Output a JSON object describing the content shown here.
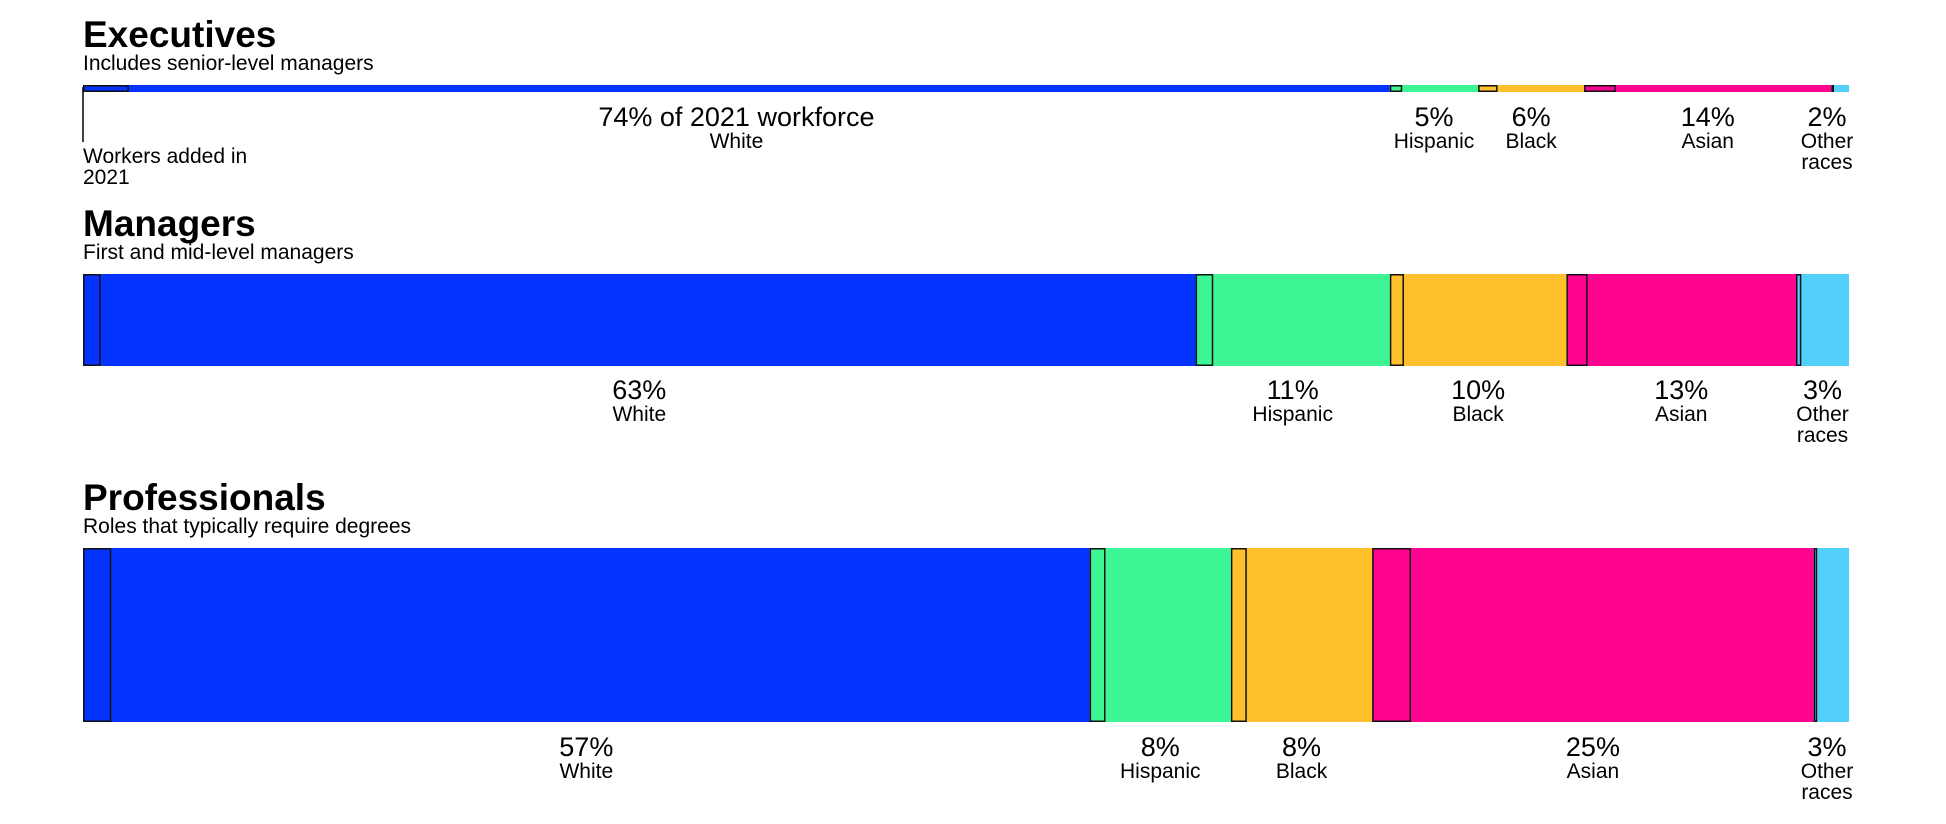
{
  "chart_data": {
    "type": "bar",
    "orientation": "horizontal",
    "stacked": true,
    "unit": "% of 2021 workforce",
    "colors": {
      "White": "#0433ff",
      "Hispanic": "#3cf595",
      "Black": "#ffc12b",
      "Asian": "#ff0391",
      "Other races": "#52d0fa"
    },
    "panels": [
      {
        "title": "Executives",
        "subtitle": "Includes senior-level managers",
        "segments": [
          {
            "group": "White",
            "value": 74,
            "added": 2.6,
            "pct_label": "74% of 2021 workforce",
            "label": "White"
          },
          {
            "group": "Hispanic",
            "value": 5,
            "added": 0.7,
            "pct_label": "5%",
            "label": "Hispanic"
          },
          {
            "group": "Black",
            "value": 6,
            "added": 1.1,
            "pct_label": "6%",
            "label": "Black"
          },
          {
            "group": "Asian",
            "value": 14,
            "added": 1.8,
            "pct_label": "14%",
            "label": "Asian"
          },
          {
            "group": "Other races",
            "value": 2,
            "added": 0.15,
            "pct_label": "2%",
            "label": "Other races"
          }
        ]
      },
      {
        "title": "Managers",
        "subtitle": "First and mid-level managers",
        "segments": [
          {
            "group": "White",
            "value": 63,
            "added": 1.0,
            "pct_label": "63%",
            "label": "White"
          },
          {
            "group": "Hispanic",
            "value": 11,
            "added": 1.0,
            "pct_label": "11%",
            "label": "Hispanic"
          },
          {
            "group": "Black",
            "value": 10,
            "added": 0.8,
            "pct_label": "10%",
            "label": "Black"
          },
          {
            "group": "Asian",
            "value": 13,
            "added": 1.2,
            "pct_label": "13%",
            "label": "Asian"
          },
          {
            "group": "Other races",
            "value": 3,
            "added": 0.3,
            "pct_label": "3%",
            "label": "Other races"
          }
        ]
      },
      {
        "title": "Professionals",
        "subtitle": "Roles that typically require degrees",
        "segments": [
          {
            "group": "White",
            "value": 57,
            "added": 1.6,
            "pct_label": "57%",
            "label": "White"
          },
          {
            "group": "Hispanic",
            "value": 8,
            "added": 0.9,
            "pct_label": "8%",
            "label": "Hispanic"
          },
          {
            "group": "Black",
            "value": 8,
            "added": 0.9,
            "pct_label": "8%",
            "label": "Black"
          },
          {
            "group": "Asian",
            "value": 25,
            "added": 2.2,
            "pct_label": "25%",
            "label": "Asian"
          },
          {
            "group": "Other races",
            "value": 3,
            "added": 0.2,
            "pct_label": "3%",
            "label": "Other races"
          }
        ]
      }
    ],
    "annotation": "Workers added in 2021"
  }
}
